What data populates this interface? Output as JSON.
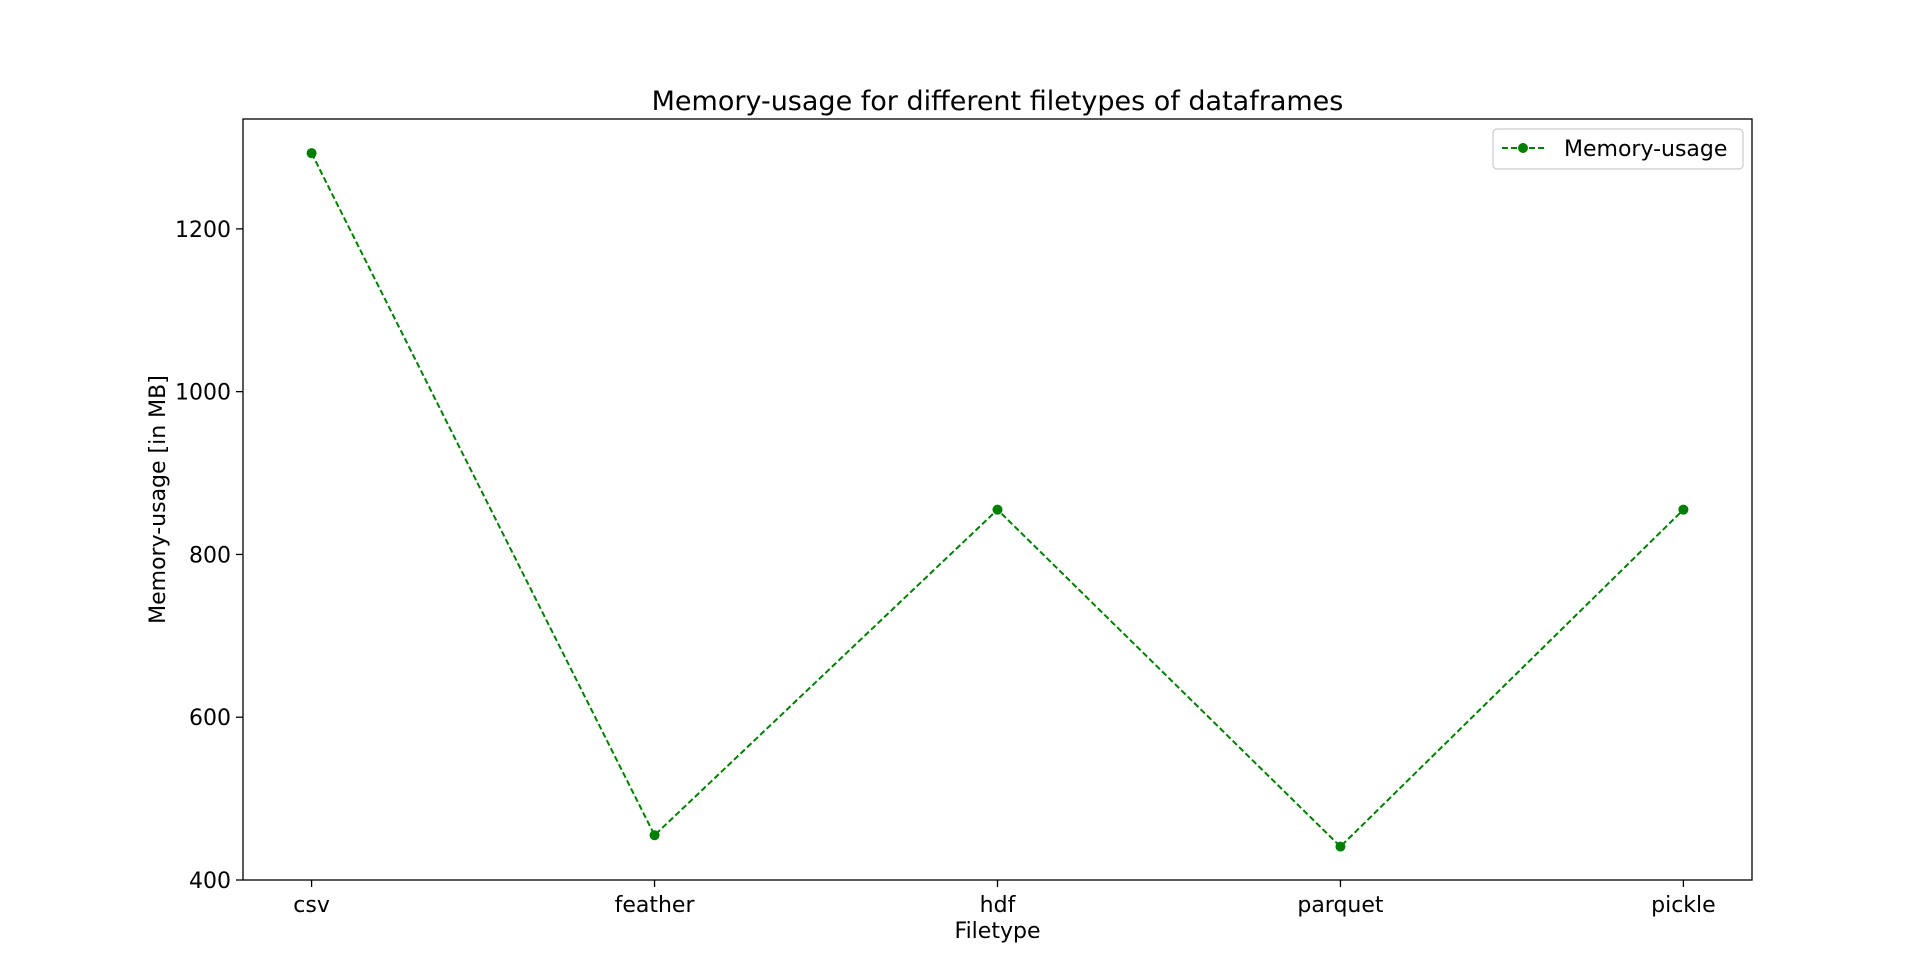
{
  "chart_data": {
    "type": "line",
    "title": "Memory-usage for different filetypes of dataframes",
    "xlabel": "Filetype",
    "ylabel": "Memory-usage [in MB]",
    "categories": [
      "csv",
      "feather",
      "hdf",
      "parquet",
      "pickle"
    ],
    "series": [
      {
        "name": "Memory-usage",
        "values": [
          1293,
          455,
          855,
          441,
          855
        ],
        "color": "#008000",
        "line_style": "dashed",
        "marker": "circle"
      }
    ],
    "ylim": [
      400,
      1335
    ],
    "yticks": [
      400,
      600,
      800,
      1000,
      1200
    ],
    "grid": false,
    "legend_position": "top-right"
  }
}
